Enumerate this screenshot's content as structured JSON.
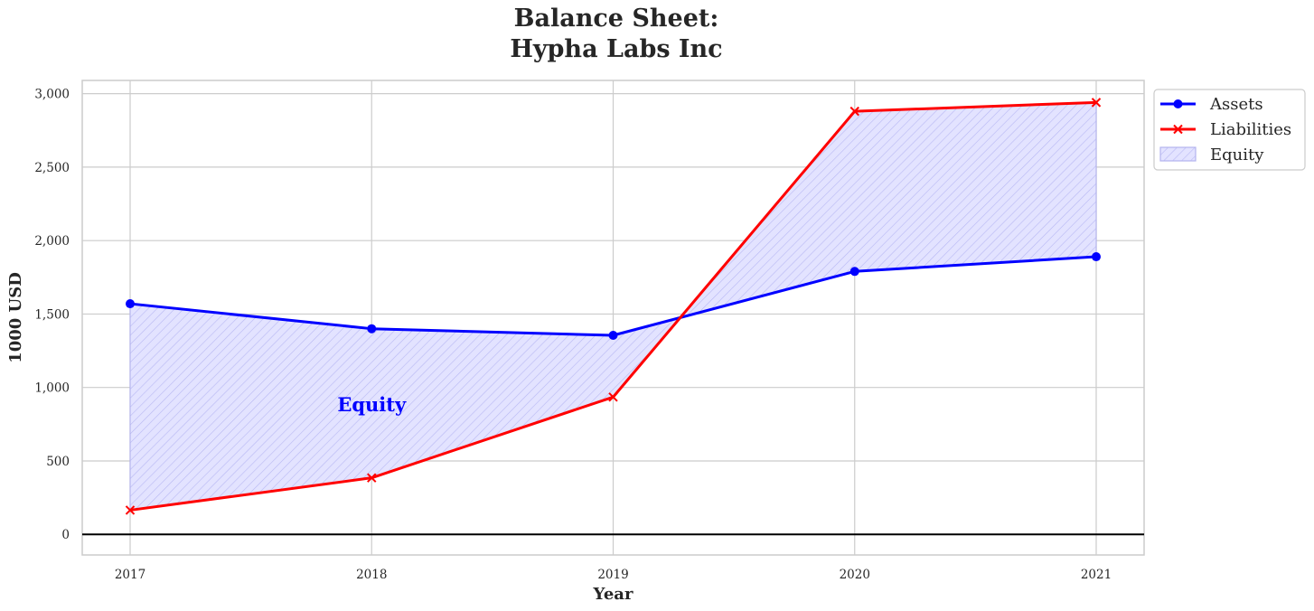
{
  "chart_data": {
    "type": "line",
    "title_line1": "Balance Sheet:",
    "title_line2": "Hypha Labs Inc",
    "xlabel": "Year",
    "ylabel": "1000 USD",
    "categories": [
      "2017",
      "2018",
      "2019",
      "2020",
      "2021"
    ],
    "series": [
      {
        "name": "Assets",
        "values": [
          1570,
          1400,
          1355,
          1790,
          1890
        ],
        "color": "#0000ff",
        "marker": "circle"
      },
      {
        "name": "Liabilities",
        "values": [
          165,
          385,
          935,
          2880,
          2940
        ],
        "color": "#ff0000",
        "marker": "x"
      }
    ],
    "fill": {
      "name": "Equity",
      "between": [
        "Assets",
        "Liabilities"
      ],
      "color": "#ccccff",
      "hatch": "diagonal"
    },
    "annotation": {
      "text": "Equity",
      "category": "2018",
      "value": 880,
      "color": "#0000ff"
    },
    "ylim": [
      -140,
      3090
    ],
    "yticks": [
      0,
      500,
      1000,
      1500,
      2000,
      2500,
      3000
    ],
    "ytick_labels": [
      "0",
      "500",
      "1,000",
      "1,500",
      "2,000",
      "2,500",
      "3,000"
    ],
    "zero_line": true,
    "grid": true,
    "legend_position": "outside-top-right"
  }
}
